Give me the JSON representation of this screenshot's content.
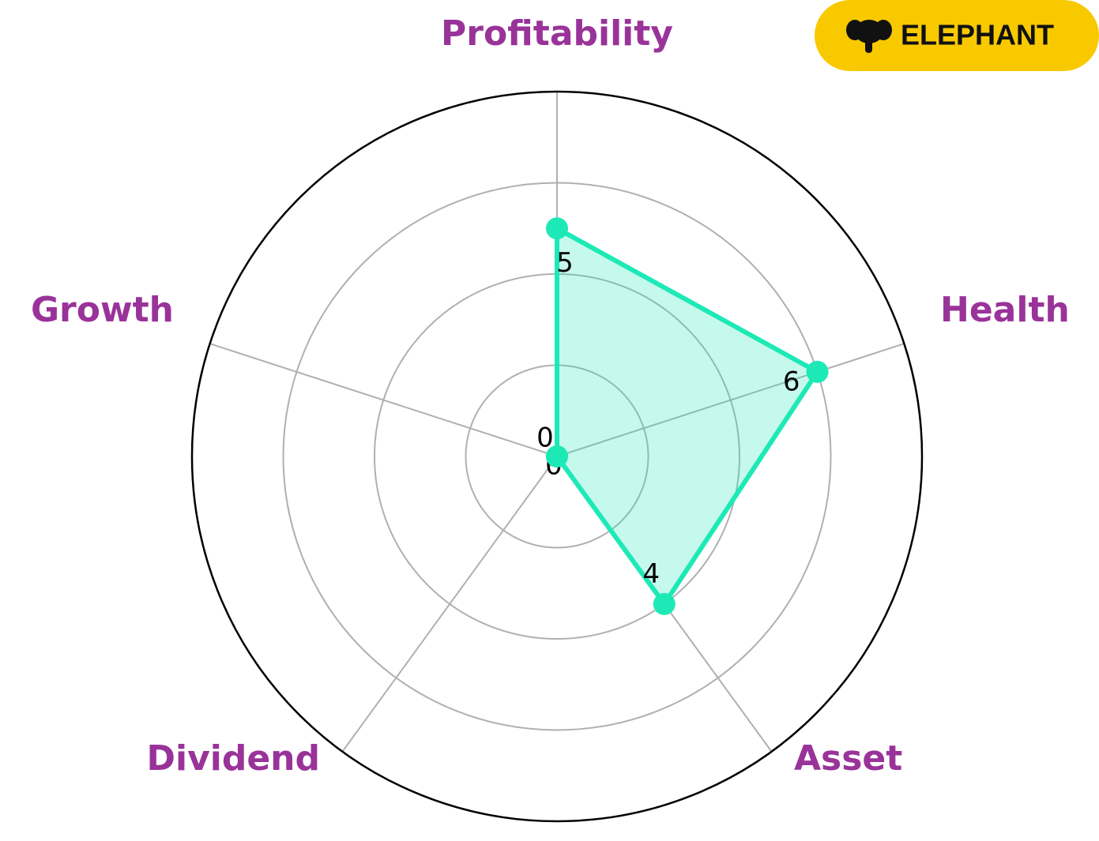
{
  "chart_data": {
    "type": "radar",
    "categories": [
      "Profitability",
      "Health",
      "Asset",
      "Dividend",
      "Growth"
    ],
    "values": [
      5,
      6,
      4,
      0,
      0
    ],
    "color": "#1de9b6",
    "label_color": "#993399",
    "rlim": [
      0,
      8
    ],
    "rticks": [
      2,
      4,
      6,
      8
    ],
    "grid": true
  },
  "logo": {
    "text": "ELEPHANT"
  }
}
